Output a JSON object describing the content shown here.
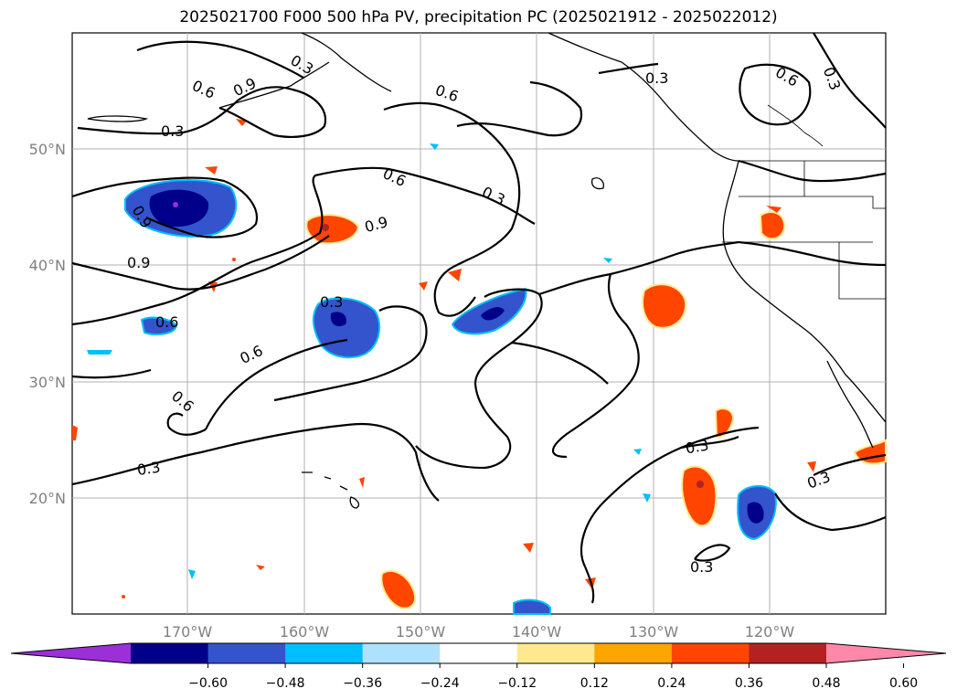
{
  "title": "2025021700 F000 500 hPa PV, precipitation PC (2025021912 - 2025022012)",
  "axes": {
    "lat_ticks": [
      "50°N",
      "40°N",
      "30°N",
      "20°N"
    ],
    "lon_ticks": [
      "170°W",
      "160°W",
      "150°W",
      "140°W",
      "130°W",
      "120°W"
    ]
  },
  "contour_labels": [
    "0.3",
    "0.6",
    "0.9"
  ],
  "colorbar": {
    "colors": [
      "#9b30d8",
      "#00008b",
      "#3354cc",
      "#00bfff",
      "#aee2fc",
      "#ffffff",
      "#ffe98e",
      "#ffa500",
      "#ff4500",
      "#b22222",
      "#ff88aa"
    ],
    "tick_labels": [
      "−0.60",
      "−0.48",
      "−0.36",
      "−0.24",
      "−0.12",
      "0.12",
      "0.24",
      "0.36",
      "0.48",
      "0.60"
    ]
  }
}
